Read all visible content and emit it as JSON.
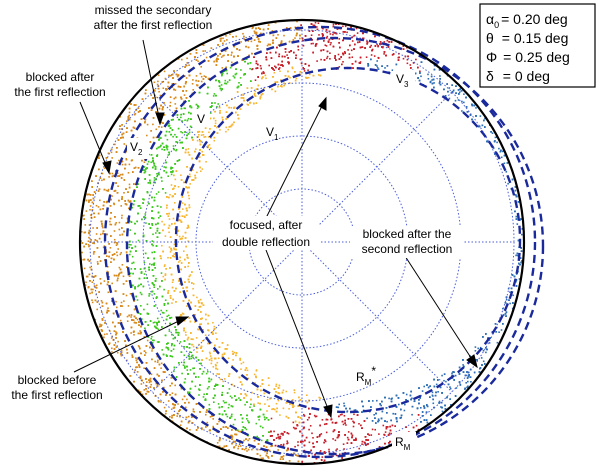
{
  "annotations": {
    "missed_line1": "missed the secondary",
    "missed_line2": "after the first reflection",
    "blocked_after_first_line1": "blocked after",
    "blocked_after_first_line2": "the first reflection",
    "focused_line1": "focused, after",
    "focused_line2": "double reflection",
    "blocked_after_second_line1": "blocked after the",
    "blocked_after_second_line2": "second reflection",
    "blocked_before_line1": "blocked before",
    "blocked_before_line2": "the first reflection"
  },
  "vertex_labels": {
    "V": "V",
    "V1_base": "V",
    "V1_sub": "1",
    "V2_base": "V",
    "V2_sub": "2",
    "V3_base": "V",
    "V3_sub": "3",
    "RM_base": "R",
    "RM_sub": "M",
    "RM_star": "*"
  },
  "legend": {
    "alpha_symbol": "α",
    "alpha_sub": "0",
    "alpha_value": "= 0.20 deg",
    "theta_symbol": "θ",
    "theta_value": "= 0.15 deg",
    "phi_symbol": "Φ",
    "phi_value": "= 0.25 deg",
    "delta_symbol": "δ",
    "delta_value": "= 0 deg"
  },
  "region_colors": {
    "blocked_before_first": "#d88a1c",
    "missed_secondary": "#3cc81e",
    "blocked_after_first_red": "#c8202a",
    "focused_orange": "#f7b733",
    "blocked_after_second": "#2e6fb5",
    "dashed_circle": "#1a2a9c",
    "grid": "#4a5ed8"
  }
}
